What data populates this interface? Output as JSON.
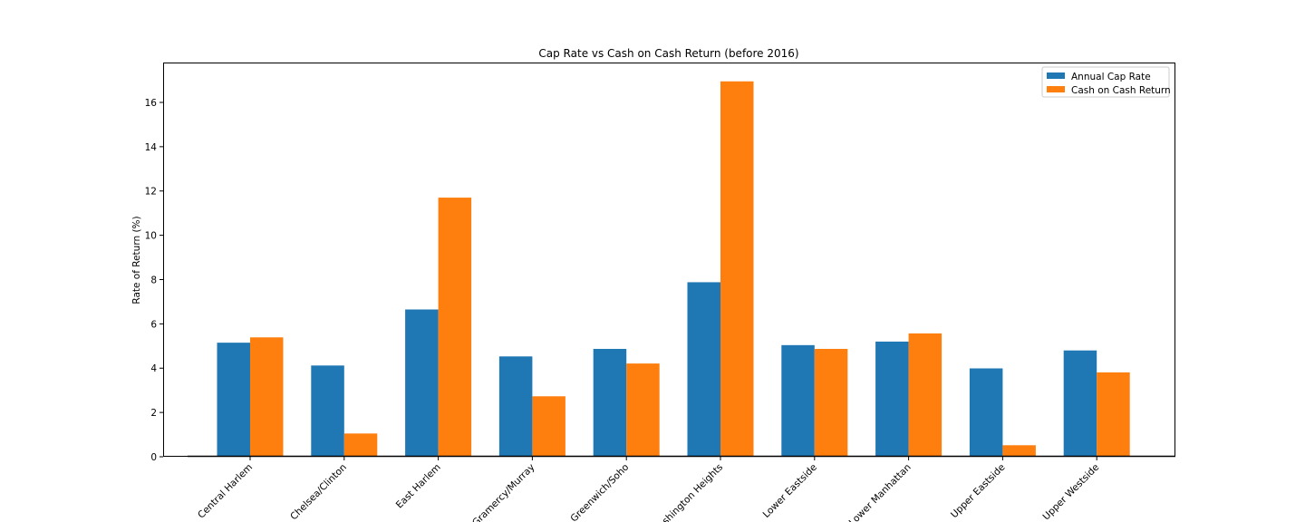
{
  "chart_data": {
    "type": "bar",
    "title": "Cap Rate vs Cash on Cash Return (before 2016)",
    "xlabel": "",
    "ylabel": "Rate of Return (%)",
    "ylim": [
      0,
      17.8
    ],
    "yticks": [
      0,
      2,
      4,
      6,
      8,
      10,
      12,
      14,
      16
    ],
    "grid": false,
    "legend_position": "top-right",
    "categories": [
      "Central Harlem",
      "Chelsea/Clinton",
      "East Harlem",
      "Gramercy/Murray",
      "Greenwich/Soho",
      "Washington Heights",
      "Lower Eastside",
      "Lower Manhattan",
      "Upper Eastside",
      "Upper Westside"
    ],
    "series": [
      {
        "name": "Annual Cap Rate",
        "color": "#1f77b4",
        "values": [
          5.15,
          4.12,
          6.65,
          4.53,
          4.87,
          7.88,
          5.04,
          5.2,
          3.99,
          4.8
        ]
      },
      {
        "name": "Cash on Cash Return",
        "color": "#ff7f0e",
        "values": [
          5.39,
          1.05,
          11.7,
          2.73,
          4.21,
          16.95,
          4.87,
          5.57,
          0.52,
          3.81
        ]
      }
    ]
  }
}
